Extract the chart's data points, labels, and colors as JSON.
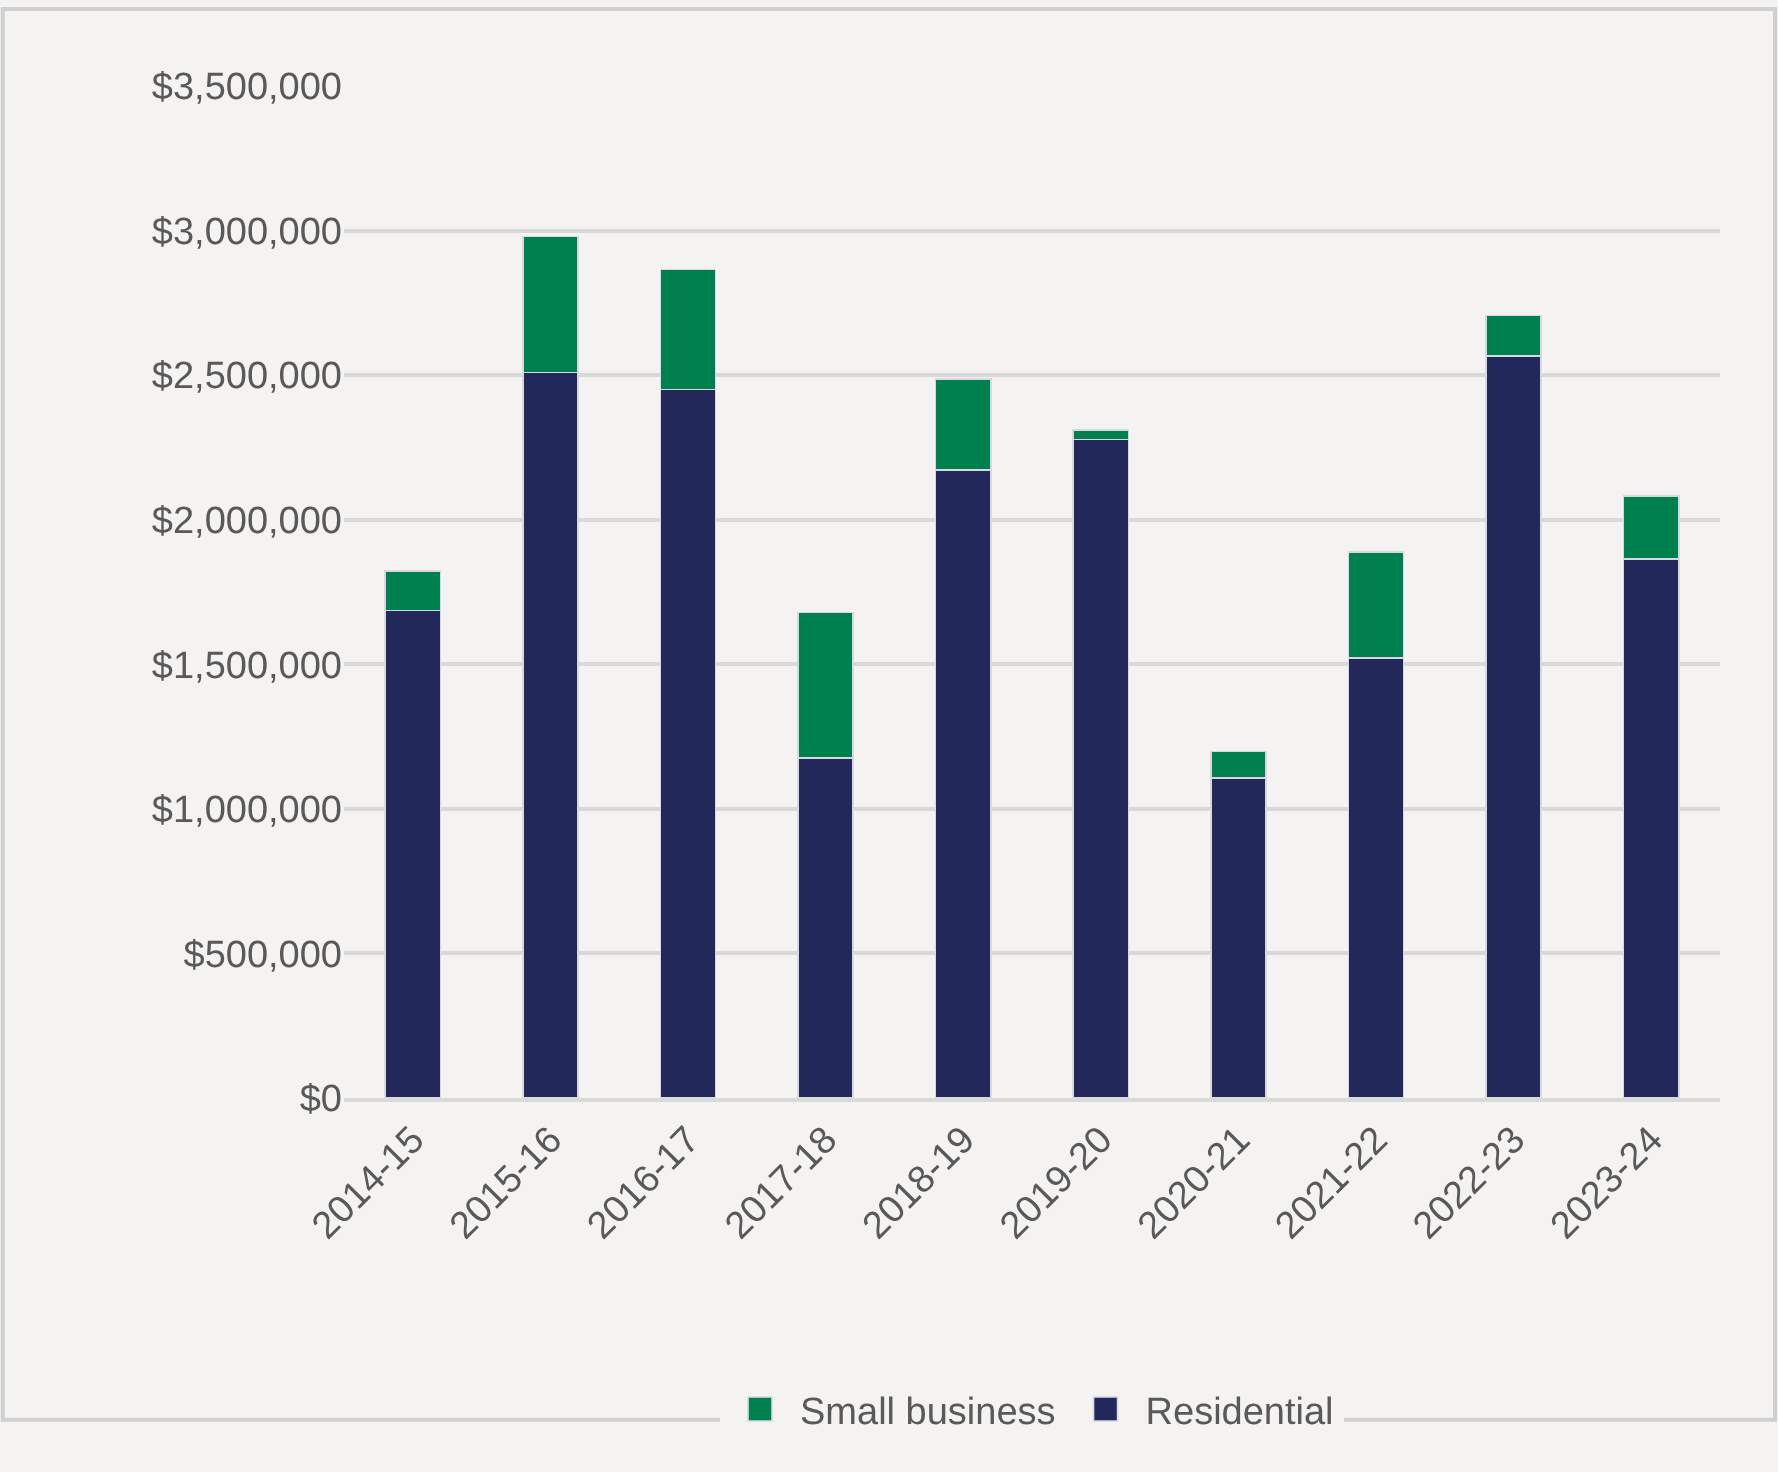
{
  "chart_data": {
    "type": "bar",
    "stacked": true,
    "categories": [
      "2014-15",
      "2015-16",
      "2016-17",
      "2017-18",
      "2018-19",
      "2019-20",
      "2020-21",
      "2021-22",
      "2022-23",
      "2023-24"
    ],
    "series": [
      {
        "name": "Residential",
        "color": "#22285a",
        "values": [
          1686000,
          2509000,
          2451000,
          1175000,
          2173000,
          2277000,
          1106000,
          1522000,
          2566000,
          1865000
        ]
      },
      {
        "name": "Small business",
        "color": "#00804f",
        "values": [
          137000,
          471000,
          414000,
          504000,
          314000,
          33000,
          93000,
          367000,
          140000,
          217000
        ]
      }
    ],
    "ylim": [
      0,
      3500000
    ],
    "yticks": [
      {
        "value": 0,
        "label": "$0"
      },
      {
        "value": 500000,
        "label": "$500,000"
      },
      {
        "value": 1000000,
        "label": "$1,000,000"
      },
      {
        "value": 1500000,
        "label": "$1,500,000"
      },
      {
        "value": 2000000,
        "label": "$2,000,000"
      },
      {
        "value": 2500000,
        "label": "$2,500,000"
      },
      {
        "value": 3000000,
        "label": "$3,000,000"
      },
      {
        "value": 3500000,
        "label": "$3,500,000"
      }
    ],
    "grid": "y",
    "legend": "bottom"
  }
}
